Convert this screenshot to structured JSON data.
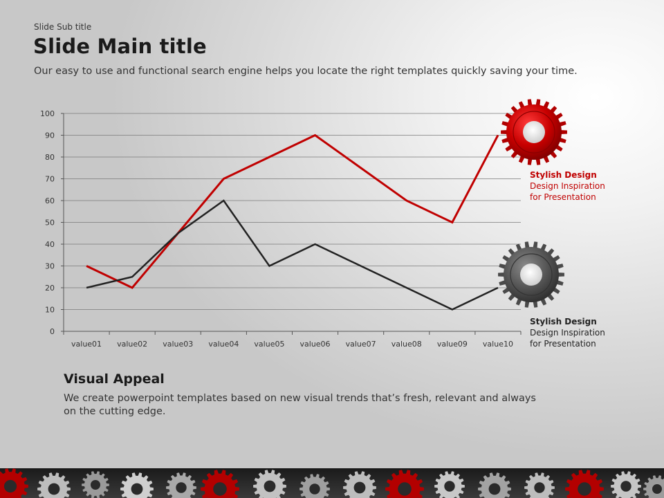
{
  "header": {
    "sub_title": "Slide Sub title",
    "main_title": "Slide Main title",
    "intro": "Our easy to use and functional search engine helps you locate the right templates quickly saving your time."
  },
  "chart_data": {
    "type": "line",
    "categories": [
      "value01",
      "value02",
      "value03",
      "value04",
      "value05",
      "value06",
      "value07",
      "value08",
      "value09",
      "value10"
    ],
    "series": [
      {
        "values": [
          30,
          20,
          45,
          70,
          80,
          90,
          75,
          60,
          50,
          90
        ],
        "color": "#c00000"
      },
      {
        "values": [
          20,
          25,
          45,
          60,
          30,
          40,
          30,
          20,
          10,
          20
        ],
        "color": "#222222"
      }
    ],
    "ylim": [
      0,
      100
    ],
    "yticks": [
      0,
      10,
      20,
      30,
      40,
      50,
      60,
      70,
      80,
      90,
      100
    ],
    "grid": true
  },
  "legend": {
    "red": {
      "title": "Stylish Design",
      "line1": "Design Inspiration",
      "line2": "for Presentation",
      "icon": "gear-icon",
      "color": "#c00000"
    },
    "gray": {
      "title": "Stylish Design",
      "line1": "Design Inspiration",
      "line2": "for Presentation",
      "icon": "gear-icon",
      "color": "#555555"
    }
  },
  "appeal": {
    "title": "Visual Appeal",
    "text": "We create powerpoint templates based on new visual trends that’s fresh, relevant and always on the cutting edge."
  }
}
